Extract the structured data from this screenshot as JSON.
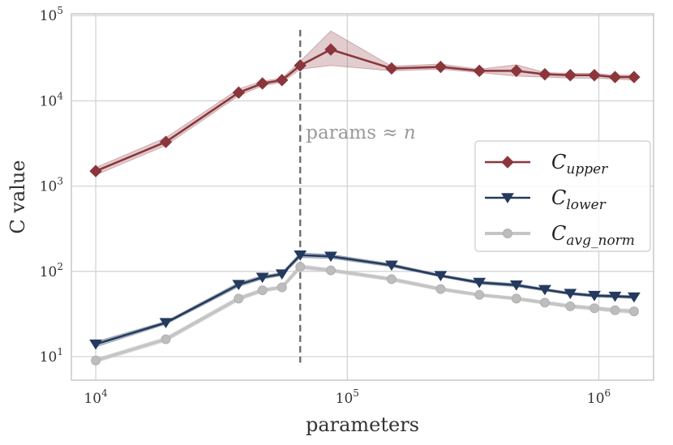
{
  "chart_data": {
    "type": "line",
    "xlabel": "parameters",
    "ylabel": "C value",
    "xscale": "log",
    "yscale": "log",
    "xlim": [
      8000,
      1650000
    ],
    "ylim": [
      5.3,
      105000
    ],
    "grid": true,
    "legend_position": "center-right",
    "x_ticks": [
      {
        "value": 10000,
        "base": "10",
        "exp": "4"
      },
      {
        "value": 100000,
        "base": "10",
        "exp": "5"
      },
      {
        "value": 1000000,
        "base": "10",
        "exp": "6"
      }
    ],
    "y_ticks": [
      {
        "value": 10,
        "base": "10",
        "exp": "1"
      },
      {
        "value": 100,
        "base": "10",
        "exp": "2"
      },
      {
        "value": 1000,
        "base": "10",
        "exp": "3"
      },
      {
        "value": 10000,
        "base": "10",
        "exp": "4"
      },
      {
        "value": 100000,
        "base": "10",
        "exp": "5"
      }
    ],
    "x": [
      10000,
      19000,
      37000,
      46000,
      55000,
      65000,
      86000,
      150000,
      235000,
      335000,
      470000,
      610000,
      770000,
      960000,
      1160000,
      1380000
    ],
    "series": [
      {
        "name": "C_upper",
        "label_main": "C",
        "label_sub": "upper",
        "color": "#8b363c",
        "marker": "diamond",
        "values": [
          1500,
          3300,
          12500,
          16000,
          17500,
          26000,
          40000,
          24000,
          25000,
          22500,
          22500,
          20500,
          20000,
          20000,
          19000,
          19000
        ],
        "band_low": [
          1350,
          3000,
          11500,
          15000,
          16500,
          23500,
          26000,
          22500,
          23500,
          21500,
          19500,
          19000,
          18500,
          18500,
          18000,
          17500
        ],
        "band_high": [
          1650,
          3700,
          13800,
          17000,
          18500,
          29000,
          66000,
          25500,
          27000,
          23500,
          26500,
          21500,
          21000,
          21000,
          20000,
          20000
        ]
      },
      {
        "name": "C_lower",
        "label_main": "C",
        "label_sub": "lower",
        "color": "#243a5e",
        "marker": "triangle-down",
        "values": [
          14,
          25,
          70,
          85,
          93,
          155,
          150,
          118,
          89,
          74,
          69,
          61,
          55,
          52,
          51,
          50
        ],
        "band_low": [
          13,
          24,
          66,
          81,
          89,
          145,
          142,
          113,
          86,
          71,
          66,
          59,
          53,
          50,
          49,
          48
        ],
        "band_high": [
          15,
          26,
          74,
          89,
          97,
          165,
          158,
          123,
          92,
          77,
          72,
          63,
          57,
          54,
          53,
          52
        ]
      },
      {
        "name": "C_avg_norm",
        "label_main": "C",
        "label_sub": "avg_norm",
        "color": "#c5c5c5",
        "marker": "circle",
        "values": [
          9,
          16,
          48,
          60,
          65,
          113,
          103,
          81,
          62,
          53,
          48,
          43,
          39,
          37,
          35,
          34
        ],
        "band_low": [
          8.5,
          15,
          45,
          57,
          62,
          105,
          98,
          77,
          59,
          51,
          46,
          41,
          37,
          35,
          33,
          32
        ],
        "band_high": [
          9.5,
          17,
          51,
          63,
          68,
          121,
          108,
          85,
          65,
          55,
          50,
          45,
          41,
          39,
          37,
          36
        ]
      }
    ],
    "annotation": {
      "x": 65000,
      "line_y_range": [
        8.5,
        68000
      ],
      "text_main": "params ≈ ",
      "text_var": "n",
      "text_y": 4300
    }
  }
}
